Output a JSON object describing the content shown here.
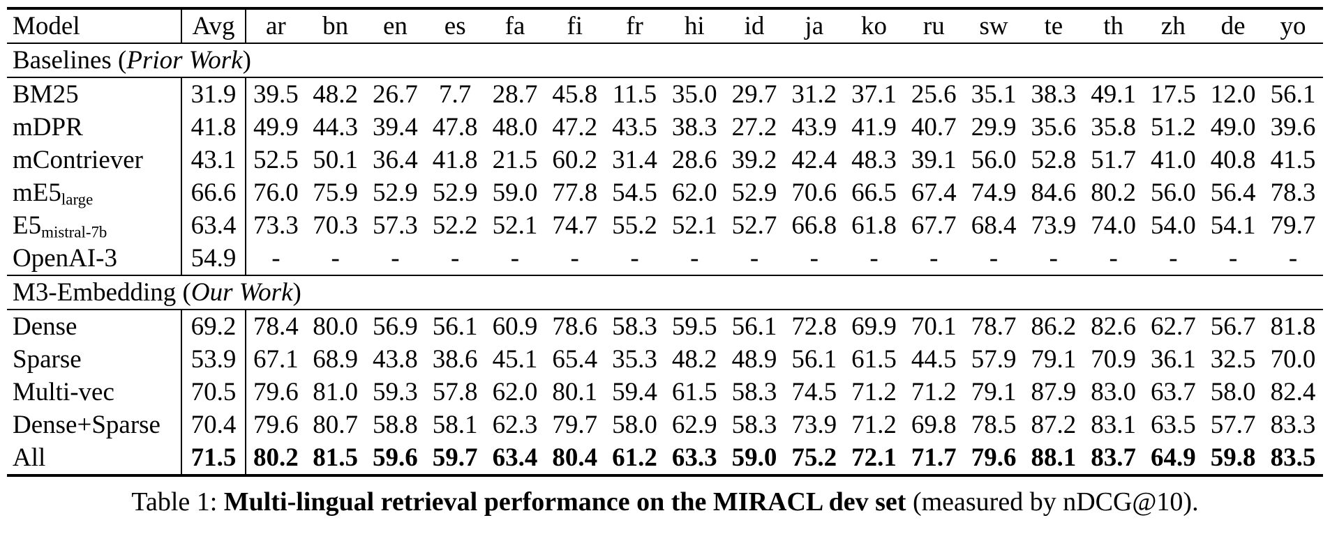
{
  "table": {
    "columns": [
      "Model",
      "Avg",
      "ar",
      "bn",
      "en",
      "es",
      "fa",
      "fi",
      "fr",
      "hi",
      "id",
      "ja",
      "ko",
      "ru",
      "sw",
      "te",
      "th",
      "zh",
      "de",
      "yo"
    ],
    "sections": [
      {
        "header": {
          "plain": "Baselines (",
          "italic": "Prior Work",
          "end": ")"
        },
        "rows": [
          {
            "model": "BM25",
            "model_sub": "",
            "avg": "31.9",
            "bold": false,
            "values": [
              "39.5",
              "48.2",
              "26.7",
              "7.7",
              "28.7",
              "45.8",
              "11.5",
              "35.0",
              "29.7",
              "31.2",
              "37.1",
              "25.6",
              "35.1",
              "38.3",
              "49.1",
              "17.5",
              "12.0",
              "56.1"
            ]
          },
          {
            "model": "mDPR",
            "model_sub": "",
            "avg": "41.8",
            "bold": false,
            "values": [
              "49.9",
              "44.3",
              "39.4",
              "47.8",
              "48.0",
              "47.2",
              "43.5",
              "38.3",
              "27.2",
              "43.9",
              "41.9",
              "40.7",
              "29.9",
              "35.6",
              "35.8",
              "51.2",
              "49.0",
              "39.6"
            ]
          },
          {
            "model": "mContriever",
            "model_sub": "",
            "avg": "43.1",
            "bold": false,
            "values": [
              "52.5",
              "50.1",
              "36.4",
              "41.8",
              "21.5",
              "60.2",
              "31.4",
              "28.6",
              "39.2",
              "42.4",
              "48.3",
              "39.1",
              "56.0",
              "52.8",
              "51.7",
              "41.0",
              "40.8",
              "41.5"
            ]
          },
          {
            "model": "mE5",
            "model_sub": "large",
            "avg": "66.6",
            "bold": false,
            "values": [
              "76.0",
              "75.9",
              "52.9",
              "52.9",
              "59.0",
              "77.8",
              "54.5",
              "62.0",
              "52.9",
              "70.6",
              "66.5",
              "67.4",
              "74.9",
              "84.6",
              "80.2",
              "56.0",
              "56.4",
              "78.3"
            ]
          },
          {
            "model": "E5",
            "model_sub": "mistral-7b",
            "avg": "63.4",
            "bold": false,
            "values": [
              "73.3",
              "70.3",
              "57.3",
              "52.2",
              "52.1",
              "74.7",
              "55.2",
              "52.1",
              "52.7",
              "66.8",
              "61.8",
              "67.7",
              "68.4",
              "73.9",
              "74.0",
              "54.0",
              "54.1",
              "79.7"
            ]
          },
          {
            "model": "OpenAI-3",
            "model_sub": "",
            "avg": "54.9",
            "bold": false,
            "values": [
              "-",
              "-",
              "-",
              "-",
              "-",
              "-",
              "-",
              "-",
              "-",
              "-",
              "-",
              "-",
              "-",
              "-",
              "-",
              "-",
              "-",
              "-"
            ]
          }
        ]
      },
      {
        "header": {
          "plain": "M3-Embedding (",
          "italic": "Our Work",
          "end": ")"
        },
        "rows": [
          {
            "model": "Dense",
            "model_sub": "",
            "avg": "69.2",
            "bold": false,
            "values": [
              "78.4",
              "80.0",
              "56.9",
              "56.1",
              "60.9",
              "78.6",
              "58.3",
              "59.5",
              "56.1",
              "72.8",
              "69.9",
              "70.1",
              "78.7",
              "86.2",
              "82.6",
              "62.7",
              "56.7",
              "81.8"
            ]
          },
          {
            "model": "Sparse",
            "model_sub": "",
            "avg": "53.9",
            "bold": false,
            "values": [
              "67.1",
              "68.9",
              "43.8",
              "38.6",
              "45.1",
              "65.4",
              "35.3",
              "48.2",
              "48.9",
              "56.1",
              "61.5",
              "44.5",
              "57.9",
              "79.1",
              "70.9",
              "36.1",
              "32.5",
              "70.0"
            ]
          },
          {
            "model": "Multi-vec",
            "model_sub": "",
            "avg": "70.5",
            "bold": false,
            "values": [
              "79.6",
              "81.0",
              "59.3",
              "57.8",
              "62.0",
              "80.1",
              "59.4",
              "61.5",
              "58.3",
              "74.5",
              "71.2",
              "71.2",
              "79.1",
              "87.9",
              "83.0",
              "63.7",
              "58.0",
              "82.4"
            ]
          },
          {
            "model": "Dense+Sparse",
            "model_sub": "",
            "avg": "70.4",
            "bold": false,
            "values": [
              "79.6",
              "80.7",
              "58.8",
              "58.1",
              "62.3",
              "79.7",
              "58.0",
              "62.9",
              "58.3",
              "73.9",
              "71.2",
              "69.8",
              "78.5",
              "87.2",
              "83.1",
              "63.5",
              "57.7",
              "83.3"
            ]
          },
          {
            "model": "All",
            "model_sub": "",
            "avg": "71.5",
            "bold": true,
            "values": [
              "80.2",
              "81.5",
              "59.6",
              "59.7",
              "63.4",
              "80.4",
              "61.2",
              "63.3",
              "59.0",
              "75.2",
              "72.1",
              "71.7",
              "79.6",
              "88.1",
              "83.7",
              "64.9",
              "59.8",
              "83.5"
            ]
          }
        ]
      }
    ],
    "caption": {
      "prefix": "Table 1: ",
      "bold": "Multi-lingual retrieval performance on the MIRACL dev set",
      "suffix": " (measured by nDCG@10)."
    }
  }
}
